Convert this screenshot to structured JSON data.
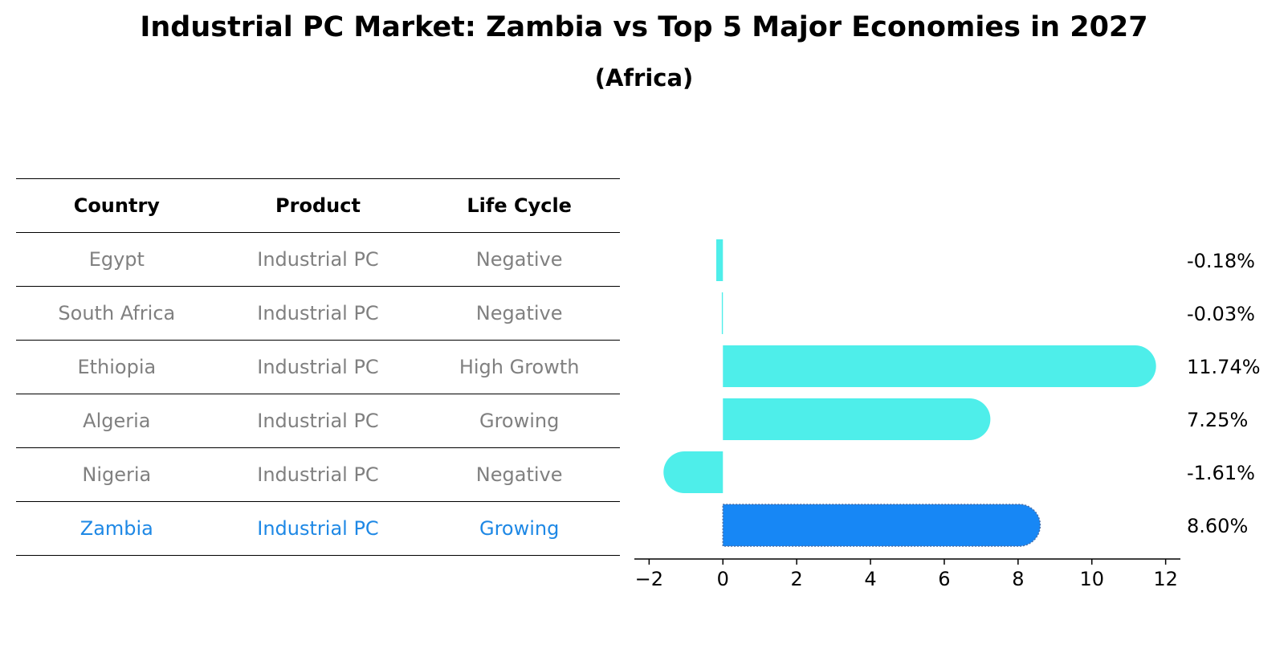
{
  "title": "Industrial PC Market: Zambia vs Top 5 Major Economies in 2027",
  "subtitle": "(Africa)",
  "table": {
    "headers": [
      "Country",
      "Product",
      "Life Cycle"
    ],
    "rows": [
      [
        "Egypt",
        "Industrial PC",
        "Negative"
      ],
      [
        "South Africa",
        "Industrial PC",
        "Negative"
      ],
      [
        "Ethiopia",
        "Industrial PC",
        "High Growth"
      ],
      [
        "Algeria",
        "Industrial PC",
        "Growing"
      ],
      [
        "Nigeria",
        "Industrial PC",
        "Negative"
      ],
      [
        "Zambia",
        "Industrial PC",
        "Growing"
      ]
    ],
    "highlight_row": 5
  },
  "chart_data": {
    "type": "bar",
    "orientation": "horizontal",
    "categories": [
      "Egypt",
      "South Africa",
      "Ethiopia",
      "Algeria",
      "Nigeria",
      "Zambia"
    ],
    "values": [
      -0.18,
      -0.03,
      11.74,
      7.25,
      -1.61,
      8.6
    ],
    "data_labels": [
      "-0.18%",
      "-0.03%",
      "11.74%",
      "7.25%",
      "-1.61%",
      "8.60%"
    ],
    "xlim": [
      -2.4,
      12.4
    ],
    "xticks": [
      -2,
      0,
      2,
      4,
      6,
      8,
      10,
      12
    ],
    "xtick_labels": [
      "−2",
      "0",
      "2",
      "4",
      "6",
      "8",
      "10",
      "12"
    ],
    "grid": false,
    "colors": {
      "default": "#4eeeea",
      "highlight": "#1787f5"
    },
    "highlight_index": 5
  }
}
